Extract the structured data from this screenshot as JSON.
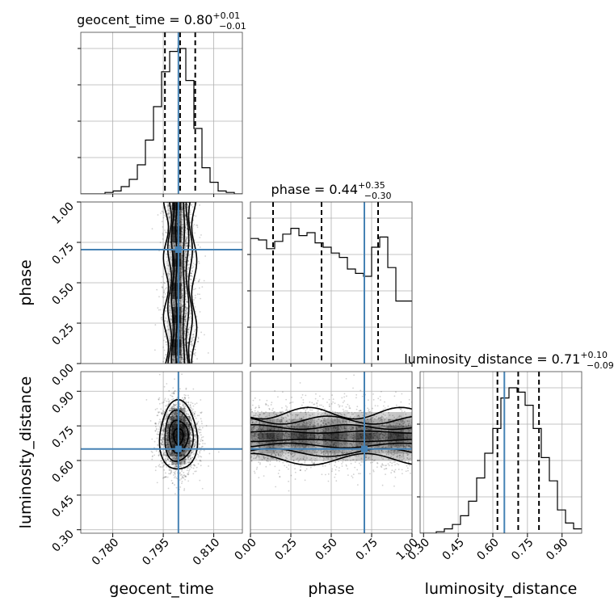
{
  "chart_data": {
    "type": "corner",
    "parameters": [
      {
        "name": "geocent_time",
        "label": "geocent_time",
        "range": [
          0.7705,
          0.8185
        ],
        "ticks": [
          "0.780",
          "0.795",
          "0.810"
        ],
        "tick_values": [
          0.78,
          0.795,
          0.81
        ],
        "truth": 0.7995,
        "title": {
          "text": "geocent_time = 0.80",
          "plus": "+0.01",
          "minus": "−0.01"
        },
        "quantiles": [
          0.7955,
          0.8,
          0.8045
        ]
      },
      {
        "name": "phase",
        "label": "phase",
        "range": [
          0.0,
          1.0
        ],
        "ticks": [
          "0.00",
          "0.25",
          "0.50",
          "0.75",
          "1.00"
        ],
        "tick_values": [
          0.0,
          0.25,
          0.5,
          0.75,
          1.0
        ],
        "truth": 0.705,
        "title": {
          "text": "phase = 0.44",
          "plus": "+0.35",
          "minus": "−0.30"
        },
        "quantiles": [
          0.14,
          0.44,
          0.79
        ]
      },
      {
        "name": "luminosity_distance",
        "label": "luminosity_distance",
        "range": [
          0.285,
          0.985
        ],
        "ticks": [
          "0.30",
          "0.45",
          "0.60",
          "0.75",
          "0.90"
        ],
        "tick_values": [
          0.3,
          0.45,
          0.6,
          0.75,
          0.9
        ],
        "truth": 0.65,
        "title": {
          "text": "luminosity_distance = 0.71",
          "plus": "+0.10",
          "minus": "−0.09"
        },
        "quantiles": [
          0.62,
          0.71,
          0.8
        ]
      }
    ],
    "histograms": [
      {
        "bin_edges": [
          0.7705,
          0.7729,
          0.7753,
          0.7777,
          0.7801,
          0.7825,
          0.7849,
          0.7873,
          0.7897,
          0.7921,
          0.7945,
          0.7969,
          0.7993,
          0.8017,
          0.8041,
          0.8065,
          0.8089,
          0.8113,
          0.8137,
          0.8161,
          0.8185
        ],
        "counts": [
          0,
          0,
          0,
          0.01,
          0.02,
          0.05,
          0.1,
          0.2,
          0.37,
          0.6,
          0.84,
          0.98,
          1.0,
          0.78,
          0.45,
          0.18,
          0.08,
          0.02,
          0.01,
          0
        ]
      },
      {
        "bin_edges": [
          0,
          0.05,
          0.1,
          0.15,
          0.2,
          0.25,
          0.3,
          0.35,
          0.4,
          0.45,
          0.5,
          0.55,
          0.6,
          0.65,
          0.7,
          0.75,
          0.8,
          0.85,
          0.9,
          0.95,
          1.0
        ],
        "counts": [
          0.86,
          0.85,
          0.79,
          0.84,
          0.89,
          0.93,
          0.88,
          0.9,
          0.83,
          0.8,
          0.76,
          0.73,
          0.65,
          0.62,
          0.6,
          0.8,
          0.87,
          0.66,
          0.43,
          0.43
        ]
      },
      {
        "bin_edges": [
          0.285,
          0.32,
          0.355,
          0.39,
          0.425,
          0.46,
          0.495,
          0.53,
          0.565,
          0.6,
          0.635,
          0.67,
          0.705,
          0.74,
          0.775,
          0.81,
          0.845,
          0.88,
          0.915,
          0.95,
          0.985
        ],
        "counts": [
          0,
          0,
          0.01,
          0.03,
          0.06,
          0.12,
          0.22,
          0.38,
          0.55,
          0.72,
          0.93,
          1.0,
          0.97,
          0.88,
          0.72,
          0.52,
          0.36,
          0.16,
          0.07,
          0.03
        ]
      }
    ],
    "contours_2d": [
      {
        "x": "geocent_time",
        "y": "phase",
        "center": [
          0.8,
          0.5
        ],
        "levels_x_halfwidth": [
          0.0011,
          0.0022,
          0.0031,
          0.0042
        ],
        "mode": [
          0.7995,
          0.84
        ]
      },
      {
        "x": "geocent_time",
        "y": "luminosity_distance",
        "center": [
          0.7995,
          0.705
        ],
        "levels_halfwidth": [
          [
            0.0014,
            0.035
          ],
          [
            0.0028,
            0.07
          ],
          [
            0.0042,
            0.11
          ],
          [
            0.0056,
            0.15
          ]
        ]
      },
      {
        "x": "phase",
        "y": "luminosity_distance",
        "center": [
          0.5,
          0.705
        ],
        "levels_y_halfwidth": [
          0.018,
          0.04,
          0.07,
          0.1
        ]
      }
    ],
    "truth_color": "#4682b4",
    "grid": true
  }
}
